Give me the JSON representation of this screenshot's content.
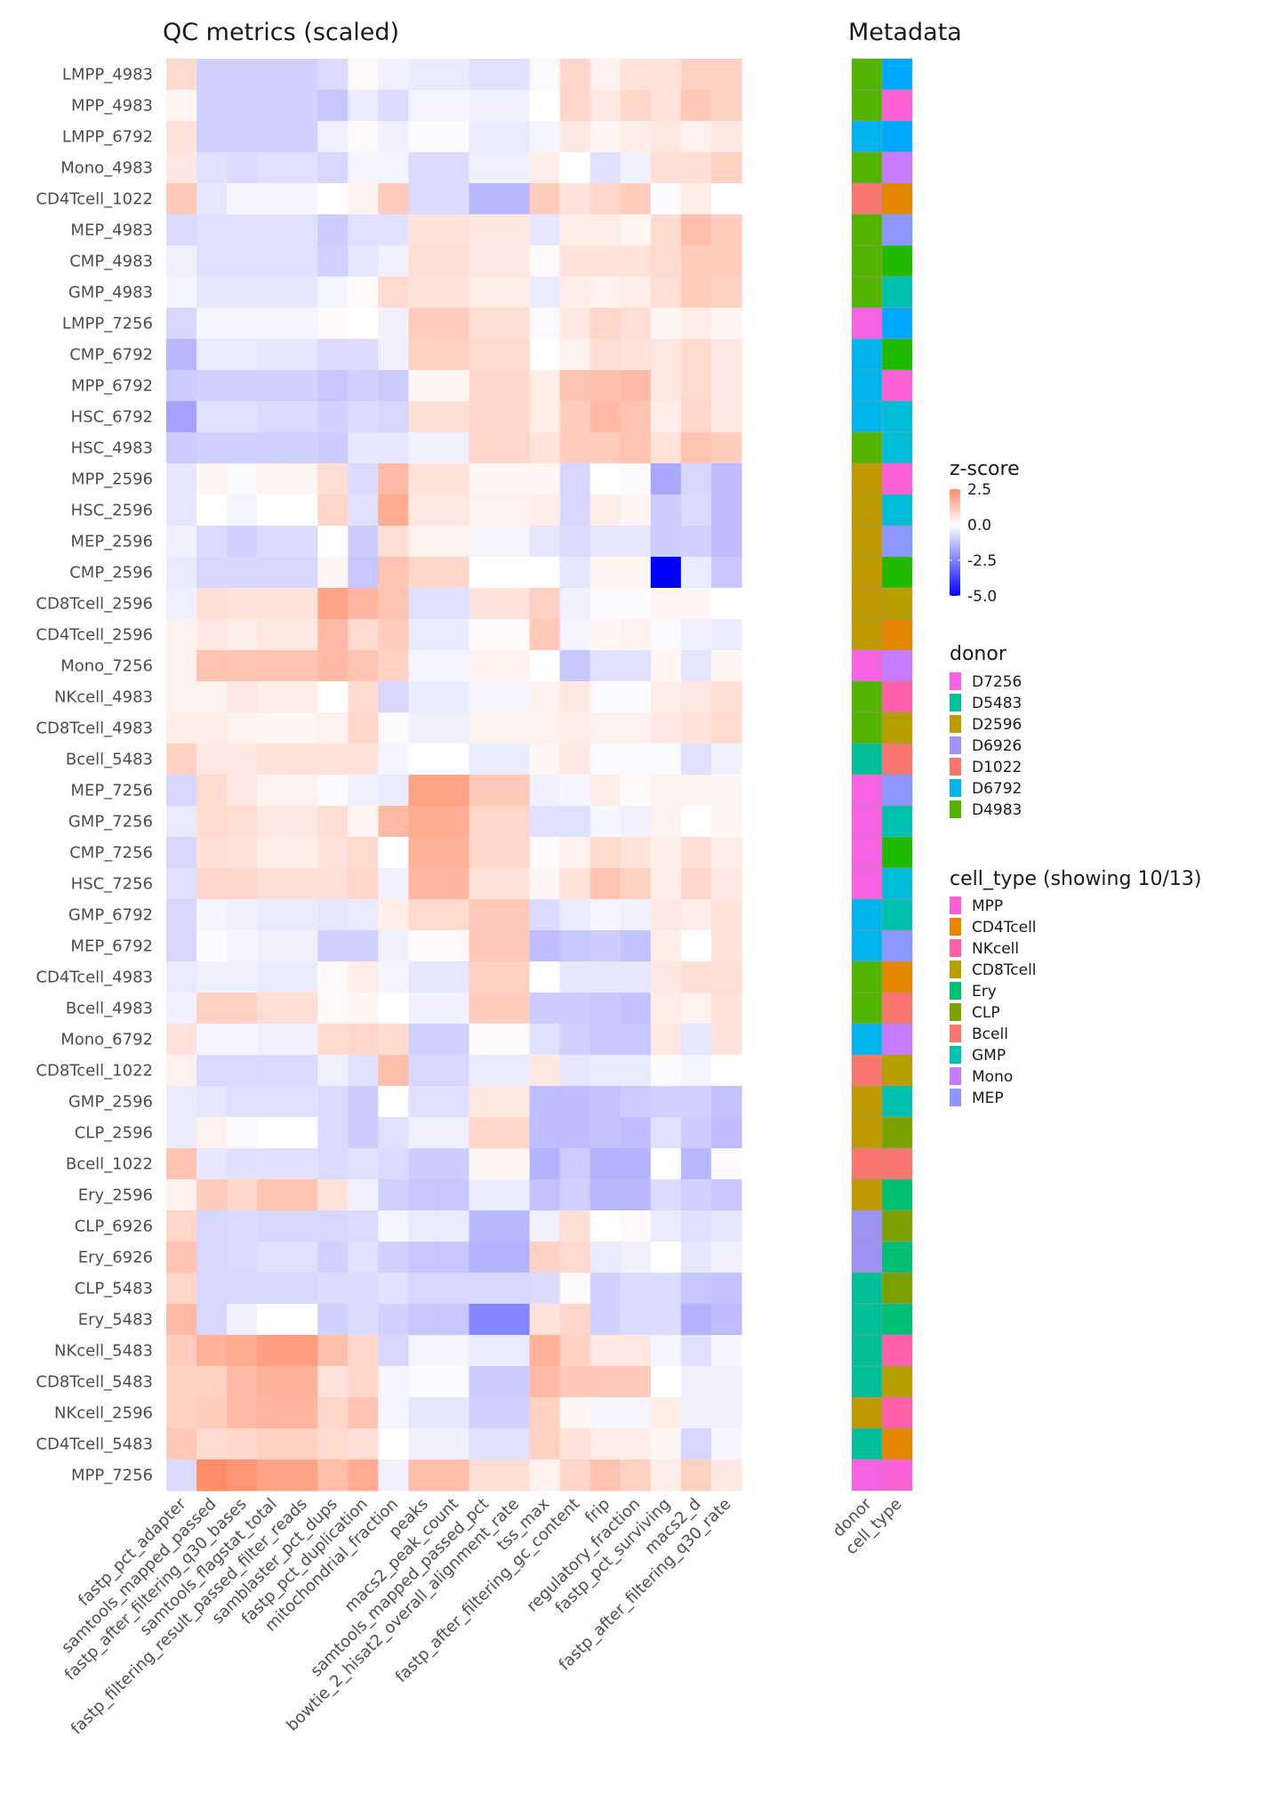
{
  "chart_data": {
    "type": "heatmap",
    "title": "QC metrics (scaled)",
    "metadata_title": "Metadata",
    "rows": [
      "LMPP_4983",
      "MPP_4983",
      "LMPP_6792",
      "Mono_4983",
      "CD4Tcell_1022",
      "MEP_4983",
      "CMP_4983",
      "GMP_4983",
      "LMPP_7256",
      "CMP_6792",
      "MPP_6792",
      "HSC_6792",
      "HSC_4983",
      "MPP_2596",
      "HSC_2596",
      "MEP_2596",
      "CMP_2596",
      "CD8Tcell_2596",
      "CD4Tcell_2596",
      "Mono_7256",
      "NKcell_4983",
      "CD8Tcell_4983",
      "Bcell_5483",
      "MEP_7256",
      "GMP_7256",
      "CMP_7256",
      "HSC_7256",
      "GMP_6792",
      "MEP_6792",
      "CD4Tcell_4983",
      "Bcell_4983",
      "Mono_6792",
      "CD8Tcell_1022",
      "GMP_2596",
      "CLP_2596",
      "Bcell_1022",
      "Ery_2596",
      "CLP_6926",
      "Ery_6926",
      "CLP_5483",
      "Ery_5483",
      "NKcell_5483",
      "CD8Tcell_5483",
      "NKcell_2596",
      "CD4Tcell_5483",
      "MPP_7256"
    ],
    "columns": [
      "fastp_pct_adapter",
      "samtools_mapped_passed",
      "fastp_after_filtering_q30_bases",
      "samtools_flagstat_total",
      "fastp_filtering_result_passed_filter_reads",
      "samblaster_pct_dups",
      "fastp_pct_duplication",
      "mitochondrial_fraction",
      "peaks",
      "macs2_peak_count",
      "samtools_mapped_passed_pct",
      "bowtie_2_hisat2_overall_alignment_rate",
      "tss_max",
      "fastp_after_filtering_gc_content",
      "frip",
      "regulatory_fraction",
      "fastp_pct_surviving",
      "macs2_d",
      "fastp_after_filtering_q30_rate"
    ],
    "values": [
      [
        0.8,
        -0.9,
        -0.9,
        -0.9,
        -0.9,
        -0.7,
        0.1,
        -0.3,
        -0.4,
        -0.4,
        -0.6,
        -0.6,
        -0.1,
        0.9,
        0.3,
        0.6,
        0.6,
        1.0,
        1.0
      ],
      [
        0.2,
        -0.9,
        -0.9,
        -0.9,
        -0.9,
        -1.1,
        -0.4,
        -0.7,
        -0.2,
        -0.2,
        -0.3,
        -0.3,
        0.0,
        0.9,
        0.5,
        0.9,
        0.6,
        1.2,
        1.0
      ],
      [
        0.6,
        -0.9,
        -0.9,
        -0.9,
        -0.9,
        -0.3,
        0.1,
        -0.3,
        -0.1,
        -0.1,
        -0.4,
        -0.4,
        -0.2,
        0.5,
        0.2,
        0.4,
        0.5,
        0.3,
        0.5
      ],
      [
        0.5,
        -0.6,
        -0.7,
        -0.6,
        -0.6,
        -0.8,
        -0.2,
        -0.2,
        -0.7,
        -0.7,
        -0.3,
        -0.3,
        0.4,
        0.0,
        -0.6,
        -0.3,
        0.7,
        0.7,
        1.0
      ],
      [
        1.2,
        -0.5,
        -0.2,
        -0.2,
        -0.2,
        0.0,
        0.3,
        1.1,
        -0.7,
        -0.7,
        -1.4,
        -1.4,
        1.1,
        0.6,
        0.9,
        1.1,
        -0.1,
        0.4,
        0.0
      ],
      [
        -0.7,
        -0.6,
        -0.6,
        -0.6,
        -0.6,
        -1.0,
        -0.6,
        -0.6,
        0.6,
        0.6,
        0.5,
        0.5,
        -0.5,
        0.4,
        0.4,
        0.2,
        0.8,
        1.4,
        1.1
      ],
      [
        -0.3,
        -0.6,
        -0.6,
        -0.6,
        -0.6,
        -0.9,
        -0.5,
        -0.3,
        0.7,
        0.7,
        0.5,
        0.5,
        0.1,
        0.6,
        0.6,
        0.6,
        0.8,
        1.1,
        1.1
      ],
      [
        -0.2,
        -0.5,
        -0.5,
        -0.5,
        -0.5,
        -0.2,
        0.1,
        0.8,
        0.6,
        0.6,
        0.4,
        0.4,
        -0.4,
        0.4,
        0.3,
        0.4,
        0.7,
        1.1,
        1.0
      ],
      [
        -0.8,
        -0.2,
        -0.2,
        -0.2,
        -0.2,
        0.1,
        0.0,
        -0.3,
        1.1,
        1.1,
        0.7,
        0.7,
        -0.1,
        0.5,
        0.9,
        0.7,
        0.2,
        0.4,
        0.2
      ],
      [
        -1.4,
        -0.4,
        -0.4,
        -0.5,
        -0.5,
        -0.7,
        -0.7,
        -0.3,
        1.0,
        1.0,
        0.8,
        0.8,
        0.0,
        0.3,
        0.7,
        0.6,
        0.5,
        0.8,
        0.5
      ],
      [
        -1.0,
        -0.9,
        -0.9,
        -0.9,
        -0.9,
        -1.1,
        -0.9,
        -1.0,
        0.2,
        0.2,
        0.9,
        0.9,
        0.4,
        1.3,
        1.4,
        1.5,
        0.5,
        0.8,
        0.5
      ],
      [
        -1.8,
        -0.6,
        -0.6,
        -0.7,
        -0.7,
        -0.9,
        -0.7,
        -0.8,
        0.7,
        0.7,
        0.9,
        0.9,
        0.4,
        1.1,
        1.5,
        1.3,
        0.4,
        0.9,
        0.5
      ],
      [
        -1.0,
        -0.9,
        -0.9,
        -0.9,
        -0.9,
        -1.0,
        -0.5,
        -0.5,
        -0.3,
        -0.3,
        0.9,
        0.9,
        0.6,
        1.1,
        1.1,
        1.3,
        0.6,
        1.3,
        1.1
      ],
      [
        -0.5,
        0.2,
        -0.1,
        0.2,
        0.2,
        0.7,
        -0.7,
        1.5,
        0.6,
        0.6,
        0.2,
        0.2,
        0.2,
        -0.8,
        0.0,
        -0.1,
        -1.7,
        -0.8,
        -1.3
      ],
      [
        -0.5,
        0.0,
        -0.2,
        0.0,
        0.0,
        0.9,
        -0.6,
        1.8,
        0.5,
        0.5,
        0.3,
        0.3,
        0.4,
        -0.8,
        0.4,
        0.2,
        -1.0,
        -0.7,
        -1.3
      ],
      [
        -0.3,
        -0.7,
        -0.9,
        -0.7,
        -0.7,
        0.0,
        -1.0,
        0.7,
        0.3,
        0.3,
        -0.2,
        -0.2,
        -0.5,
        -0.7,
        -0.5,
        -0.5,
        -1.0,
        -0.9,
        -1.3
      ],
      [
        -0.4,
        -0.8,
        -0.8,
        -0.8,
        -0.8,
        0.2,
        -1.1,
        1.3,
        0.9,
        0.9,
        0.0,
        0.0,
        0.0,
        -0.5,
        0.2,
        0.2,
        -5.0,
        -0.4,
        -1.1
      ],
      [
        -0.3,
        0.7,
        0.6,
        0.6,
        0.6,
        2.0,
        1.6,
        1.3,
        -0.6,
        -0.6,
        0.6,
        0.6,
        1.0,
        -0.3,
        -0.1,
        -0.1,
        0.2,
        0.2,
        0.0
      ],
      [
        0.3,
        0.5,
        0.4,
        0.5,
        0.5,
        1.5,
        0.8,
        1.1,
        -0.4,
        -0.4,
        0.1,
        0.1,
        1.2,
        -0.2,
        0.2,
        0.3,
        -0.1,
        -0.3,
        -0.4
      ],
      [
        0.3,
        1.3,
        1.3,
        1.3,
        1.3,
        1.5,
        1.3,
        1.0,
        -0.2,
        -0.2,
        0.3,
        0.3,
        0.0,
        -1.1,
        -0.6,
        -0.6,
        0.2,
        -0.5,
        0.2
      ],
      [
        0.3,
        0.3,
        0.5,
        0.4,
        0.4,
        0.0,
        0.8,
        -0.8,
        -0.4,
        -0.4,
        -0.2,
        -0.2,
        0.3,
        0.5,
        -0.1,
        -0.1,
        0.4,
        0.5,
        0.7
      ],
      [
        0.4,
        0.4,
        0.3,
        0.2,
        0.2,
        0.3,
        0.9,
        -0.1,
        -0.3,
        -0.3,
        0.3,
        0.3,
        0.3,
        0.4,
        0.3,
        0.3,
        0.5,
        0.6,
        0.8
      ],
      [
        1.0,
        0.5,
        0.5,
        0.6,
        0.6,
        0.6,
        0.6,
        -0.2,
        0.0,
        0.0,
        -0.4,
        -0.4,
        0.2,
        0.5,
        -0.1,
        -0.1,
        -0.1,
        -0.6,
        -0.3
      ],
      [
        -0.8,
        0.8,
        0.5,
        0.3,
        0.3,
        -0.1,
        -0.3,
        -0.4,
        2.0,
        2.0,
        1.2,
        1.2,
        -0.3,
        -0.2,
        0.4,
        0.1,
        0.3,
        0.3,
        0.2
      ],
      [
        -0.4,
        0.8,
        0.7,
        0.5,
        0.5,
        0.7,
        0.2,
        1.5,
        1.8,
        1.8,
        0.9,
        0.9,
        -0.6,
        -0.6,
        -0.2,
        -0.3,
        0.3,
        0.0,
        0.2
      ],
      [
        -0.8,
        0.7,
        0.6,
        0.4,
        0.4,
        0.6,
        0.8,
        0.0,
        1.7,
        1.7,
        0.9,
        0.9,
        0.1,
        0.3,
        0.8,
        0.6,
        0.4,
        0.7,
        0.4
      ],
      [
        -0.6,
        0.9,
        0.9,
        0.7,
        0.7,
        0.7,
        0.9,
        -0.3,
        1.6,
        1.6,
        0.6,
        0.6,
        0.2,
        0.6,
        1.3,
        1.0,
        0.4,
        0.9,
        0.5
      ],
      [
        -0.8,
        -0.2,
        -0.3,
        -0.4,
        -0.4,
        -0.5,
        -0.4,
        0.4,
        0.8,
        0.8,
        1.2,
        1.2,
        -0.7,
        -0.4,
        -0.2,
        -0.3,
        0.5,
        0.4,
        0.6
      ],
      [
        -0.8,
        -0.1,
        -0.2,
        -0.3,
        -0.3,
        -0.9,
        -0.9,
        -0.3,
        0.1,
        0.1,
        1.2,
        1.2,
        -1.3,
        -1.1,
        -1.0,
        -1.2,
        0.4,
        0.0,
        0.6
      ],
      [
        -0.4,
        -0.3,
        -0.3,
        -0.4,
        -0.4,
        0.1,
        0.4,
        -0.2,
        -0.5,
        -0.5,
        1.0,
        1.0,
        0.0,
        -0.5,
        -0.5,
        -0.5,
        0.5,
        0.7,
        0.7
      ],
      [
        -0.3,
        1.0,
        1.0,
        0.7,
        0.7,
        0.1,
        0.2,
        0.0,
        -0.3,
        -0.3,
        1.1,
        1.1,
        -1.0,
        -1.0,
        -1.1,
        -1.2,
        0.4,
        0.3,
        0.6
      ],
      [
        0.6,
        -0.2,
        -0.2,
        -0.3,
        -0.3,
        0.8,
        0.9,
        0.8,
        -0.9,
        -0.9,
        0.1,
        0.1,
        -0.6,
        -0.9,
        -1.1,
        -1.1,
        0.5,
        -0.5,
        0.6
      ],
      [
        0.3,
        -0.7,
        -0.7,
        -0.7,
        -0.7,
        -0.3,
        -0.6,
        1.4,
        -0.8,
        -0.8,
        -0.4,
        -0.4,
        0.5,
        -0.5,
        -0.4,
        -0.4,
        -0.1,
        -0.2,
        0.0
      ],
      [
        -0.4,
        -0.5,
        -0.6,
        -0.6,
        -0.6,
        -0.7,
        -1.0,
        0.0,
        -0.6,
        -0.6,
        0.5,
        0.5,
        -1.3,
        -1.3,
        -1.2,
        -1.0,
        -0.9,
        -0.9,
        -1.2
      ],
      [
        -0.4,
        0.3,
        -0.1,
        0.0,
        0.0,
        -0.7,
        -1.0,
        -0.6,
        -0.3,
        -0.3,
        0.9,
        0.9,
        -1.3,
        -1.3,
        -1.2,
        -1.3,
        -0.6,
        -1.0,
        -1.3
      ],
      [
        1.3,
        -0.5,
        -0.6,
        -0.6,
        -0.6,
        -0.7,
        -0.6,
        -0.7,
        -1.0,
        -1.0,
        0.2,
        0.2,
        -1.5,
        -1.0,
        -1.5,
        -1.5,
        0.0,
        -1.4,
        0.1
      ],
      [
        0.3,
        1.1,
        0.9,
        1.3,
        1.3,
        0.6,
        -0.3,
        -0.9,
        -1.1,
        -1.1,
        -0.4,
        -0.4,
        -1.2,
        -0.9,
        -1.4,
        -1.4,
        -0.7,
        -0.9,
        -1.1
      ],
      [
        0.9,
        -0.8,
        -0.7,
        -0.8,
        -0.8,
        -0.8,
        -0.7,
        -0.2,
        -0.4,
        -0.4,
        -1.4,
        -1.4,
        -0.3,
        0.7,
        0.0,
        0.1,
        -0.4,
        -0.6,
        -0.5
      ],
      [
        1.3,
        -0.8,
        -0.7,
        -0.6,
        -0.6,
        -0.9,
        -0.6,
        -0.9,
        -1.1,
        -1.1,
        -1.5,
        -1.5,
        1.0,
        0.8,
        -0.4,
        -0.3,
        0.0,
        -0.5,
        -0.3
      ],
      [
        0.9,
        -0.8,
        -0.8,
        -0.8,
        -0.8,
        -0.7,
        -0.7,
        -0.6,
        -0.8,
        -0.8,
        -0.8,
        -0.8,
        -0.7,
        0.1,
        -0.9,
        -0.7,
        -0.7,
        -1.1,
        -1.2
      ],
      [
        1.5,
        -0.8,
        -0.3,
        0.0,
        0.0,
        -0.9,
        -0.7,
        -0.9,
        -1.1,
        -1.1,
        -2.4,
        -2.4,
        0.6,
        0.9,
        -0.9,
        -0.7,
        -0.7,
        -1.5,
        -1.3
      ],
      [
        1.1,
        1.7,
        1.8,
        2.1,
        2.1,
        1.4,
        0.9,
        -0.8,
        -0.2,
        -0.2,
        -0.4,
        -0.4,
        1.7,
        1.0,
        0.5,
        0.5,
        -0.2,
        -0.6,
        -0.2
      ],
      [
        1.0,
        1.0,
        1.5,
        1.7,
        1.7,
        0.6,
        0.9,
        -0.2,
        -0.1,
        -0.1,
        -1.0,
        -1.0,
        1.5,
        1.2,
        1.2,
        1.2,
        0.0,
        -0.3,
        -0.3
      ],
      [
        1.0,
        1.1,
        1.5,
        1.6,
        1.6,
        0.9,
        1.3,
        -0.2,
        -0.5,
        -0.5,
        -0.9,
        -0.9,
        1.0,
        0.2,
        -0.2,
        -0.2,
        0.4,
        -0.3,
        -0.3
      ],
      [
        1.2,
        0.8,
        0.9,
        1.0,
        1.0,
        0.8,
        0.7,
        0.0,
        -0.3,
        -0.3,
        -0.6,
        -0.6,
        1.0,
        0.6,
        0.4,
        0.4,
        0.2,
        -0.8,
        -0.2
      ],
      [
        -0.7,
        2.5,
        2.3,
        2.0,
        2.0,
        1.4,
        1.8,
        -0.3,
        1.4,
        1.4,
        0.7,
        0.7,
        0.3,
        0.9,
        1.3,
        1.0,
        0.4,
        1.0,
        0.5
      ]
    ],
    "colorbar": {
      "title": "z-score",
      "min": -5.0,
      "max": 2.5,
      "ticks": [
        "2.5",
        "0.0",
        "-2.5",
        "-5.0"
      ],
      "low_color": "#0000ff",
      "mid_color": "#ffffff",
      "high_color": "#ff8c69"
    },
    "metadata_columns": [
      "donor",
      "cell_type"
    ],
    "donor": [
      "D4983",
      "D4983",
      "D6792",
      "D4983",
      "D1022",
      "D4983",
      "D4983",
      "D4983",
      "D7256",
      "D6792",
      "D6792",
      "D6792",
      "D4983",
      "D2596",
      "D2596",
      "D2596",
      "D2596",
      "D2596",
      "D2596",
      "D7256",
      "D4983",
      "D4983",
      "D5483",
      "D7256",
      "D7256",
      "D7256",
      "D7256",
      "D6792",
      "D6792",
      "D4983",
      "D4983",
      "D6792",
      "D1022",
      "D2596",
      "D2596",
      "D1022",
      "D2596",
      "D6926",
      "D6926",
      "D5483",
      "D5483",
      "D5483",
      "D5483",
      "D2596",
      "D5483",
      "D7256"
    ],
    "cell_type": [
      "LMPP",
      "MPP",
      "LMPP",
      "Mono",
      "CD4Tcell",
      "MEP",
      "CMP",
      "GMP",
      "LMPP",
      "CMP",
      "MPP",
      "HSC",
      "HSC",
      "MPP",
      "HSC",
      "MEP",
      "CMP",
      "CD8Tcell",
      "CD4Tcell",
      "Mono",
      "NKcell",
      "CD8Tcell",
      "Bcell",
      "MEP",
      "GMP",
      "CMP",
      "HSC",
      "GMP",
      "MEP",
      "CD4Tcell",
      "Bcell",
      "Mono",
      "CD8Tcell",
      "GMP",
      "CLP",
      "Bcell",
      "Ery",
      "CLP",
      "Ery",
      "CLP",
      "Ery",
      "NKcell",
      "CD8Tcell",
      "NKcell",
      "CD4Tcell",
      "MPP"
    ],
    "donor_legend": {
      "title": "donor",
      "entries": [
        {
          "label": "D7256",
          "color": "#f563e3"
        },
        {
          "label": "D5483",
          "color": "#00bf96"
        },
        {
          "label": "D2596",
          "color": "#bf9a00"
        },
        {
          "label": "D6926",
          "color": "#9d93f5"
        },
        {
          "label": "D1022",
          "color": "#f8766d"
        },
        {
          "label": "D6792",
          "color": "#00b5eb"
        },
        {
          "label": "D4983",
          "color": "#53b400"
        }
      ]
    },
    "cell_type_legend": {
      "title": "cell_type (showing 10/13)",
      "entries": [
        {
          "label": "MPP",
          "color": "#fb61d7"
        },
        {
          "label": "CD4Tcell",
          "color": "#e58700"
        },
        {
          "label": "NKcell",
          "color": "#ff5fa8"
        },
        {
          "label": "CD8Tcell",
          "color": "#b79f00"
        },
        {
          "label": "Ery",
          "color": "#00c073"
        },
        {
          "label": "CLP",
          "color": "#7ca200"
        },
        {
          "label": "Bcell",
          "color": "#f8766d"
        },
        {
          "label": "GMP",
          "color": "#00c0b0"
        },
        {
          "label": "Mono",
          "color": "#c77cff"
        },
        {
          "label": "MEP",
          "color": "#8c97ff"
        }
      ],
      "hidden_colors": {
        "LMPP": "#00a9ff",
        "CMP": "#1fba00",
        "HSC": "#00bcd8"
      }
    }
  }
}
